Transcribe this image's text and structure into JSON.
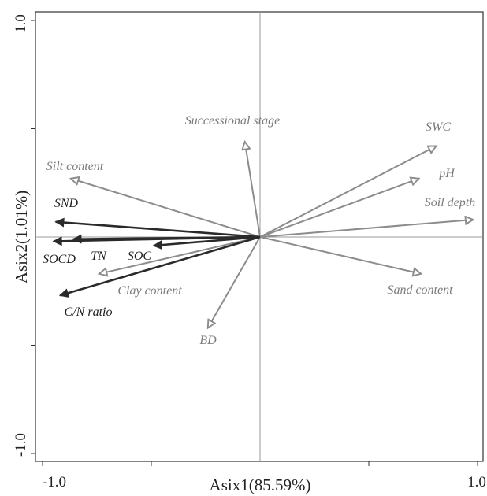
{
  "chart_data": {
    "type": "biplot",
    "xlabel": "Asix1(85.59%)",
    "ylabel": "Asix2(1.01%)",
    "xlim": [
      -1.0,
      1.0
    ],
    "ylim": [
      -1.0,
      1.0
    ],
    "x_tick_labels": [
      "-1.0",
      "1.0"
    ],
    "y_tick_labels": [
      "1.0",
      "-1.0"
    ],
    "grid": false,
    "colors": {
      "response": "#2a2a2a",
      "explanatory": "#8c8c8c"
    },
    "vectors": [
      {
        "name": "SWC",
        "x": 0.81,
        "y": 0.42,
        "group": "explanatory"
      },
      {
        "name": "pH",
        "x": 0.73,
        "y": 0.27,
        "group": "explanatory"
      },
      {
        "name": "Soil depth",
        "x": 0.98,
        "y": 0.08,
        "group": "explanatory"
      },
      {
        "name": "Sand content",
        "x": 0.74,
        "y": -0.17,
        "group": "explanatory"
      },
      {
        "name": "Successional stage",
        "x": -0.07,
        "y": 0.44,
        "group": "explanatory"
      },
      {
        "name": "Silt content",
        "x": -0.87,
        "y": 0.27,
        "group": "explanatory"
      },
      {
        "name": "Clay content",
        "x": -0.74,
        "y": -0.17,
        "group": "explanatory"
      },
      {
        "name": "BD",
        "x": -0.24,
        "y": -0.42,
        "group": "explanatory"
      },
      {
        "name": "SND",
        "x": -0.94,
        "y": 0.07,
        "group": "response"
      },
      {
        "name": "SOCD",
        "x": -0.95,
        "y": -0.02,
        "group": "response"
      },
      {
        "name": "TN",
        "x": -0.86,
        "y": -0.01,
        "group": "response"
      },
      {
        "name": "SOC",
        "x": -0.49,
        "y": -0.04,
        "group": "response"
      },
      {
        "name": "C/N ratio",
        "x": -0.92,
        "y": -0.27,
        "group": "response"
      }
    ]
  }
}
